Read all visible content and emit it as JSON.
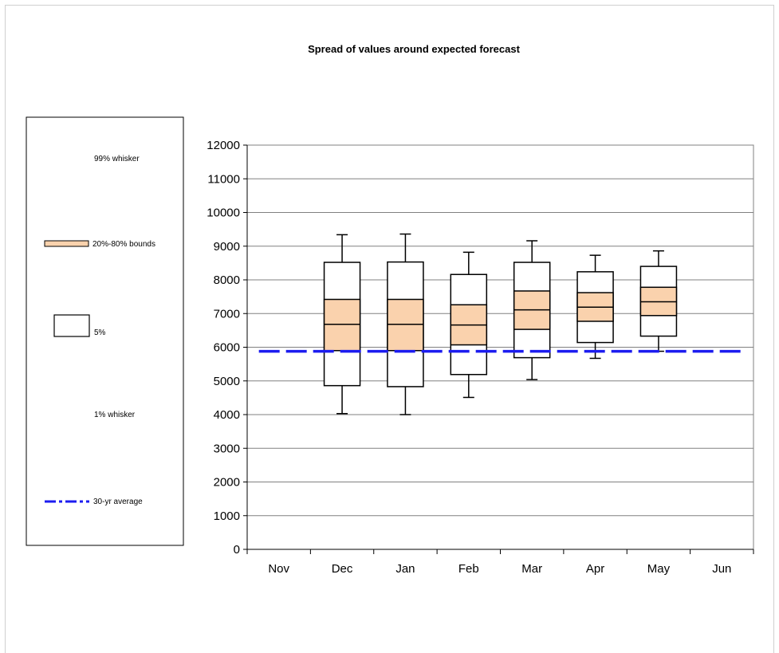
{
  "chart_data": {
    "type": "box",
    "title": "Spread of values around expected forecast",
    "xlabel": "",
    "ylabel": "",
    "ylim": [
      0,
      12000
    ],
    "yticks": [
      0,
      1000,
      2000,
      3000,
      4000,
      5000,
      6000,
      7000,
      8000,
      9000,
      10000,
      11000,
      12000
    ],
    "categories": [
      "Nov",
      "Dec",
      "Jan",
      "Feb",
      "Mar",
      "Apr",
      "May",
      "Jun"
    ],
    "grid": "horizontal",
    "legend_position": "left",
    "legend": {
      "whisker_high": "99% whisker",
      "bounds": "20%-80% bounds",
      "box_low": "5%",
      "whisker_low": "1% whisker",
      "average": "30-yr average"
    },
    "boxes": [
      {
        "category": "Dec",
        "p1": 4030,
        "p5": 4860,
        "p20": 5900,
        "p50": 6680,
        "p80": 7420,
        "p95": 8520,
        "p99": 9340
      },
      {
        "category": "Jan",
        "p1": 4000,
        "p5": 4830,
        "p20": 5900,
        "p50": 6680,
        "p80": 7420,
        "p95": 8530,
        "p99": 9360
      },
      {
        "category": "Feb",
        "p1": 4510,
        "p5": 5190,
        "p20": 6070,
        "p50": 6660,
        "p80": 7260,
        "p95": 8160,
        "p99": 8820
      },
      {
        "category": "Mar",
        "p1": 5040,
        "p5": 5690,
        "p20": 6530,
        "p50": 7110,
        "p80": 7670,
        "p95": 8520,
        "p99": 9160
      },
      {
        "category": "Apr",
        "p1": 5670,
        "p5": 6140,
        "p20": 6770,
        "p50": 7190,
        "p80": 7620,
        "p95": 8240,
        "p99": 8730
      },
      {
        "category": "May",
        "p1": 5880,
        "p5": 6330,
        "p20": 6940,
        "p50": 7350,
        "p80": 7780,
        "p95": 8400,
        "p99": 8860
      }
    ],
    "average_value": 5880,
    "colors": {
      "bounds_fill": "#fad2ad",
      "average_line": "#1c1cf0",
      "grid": "#808080",
      "box_stroke": "#000000"
    }
  }
}
